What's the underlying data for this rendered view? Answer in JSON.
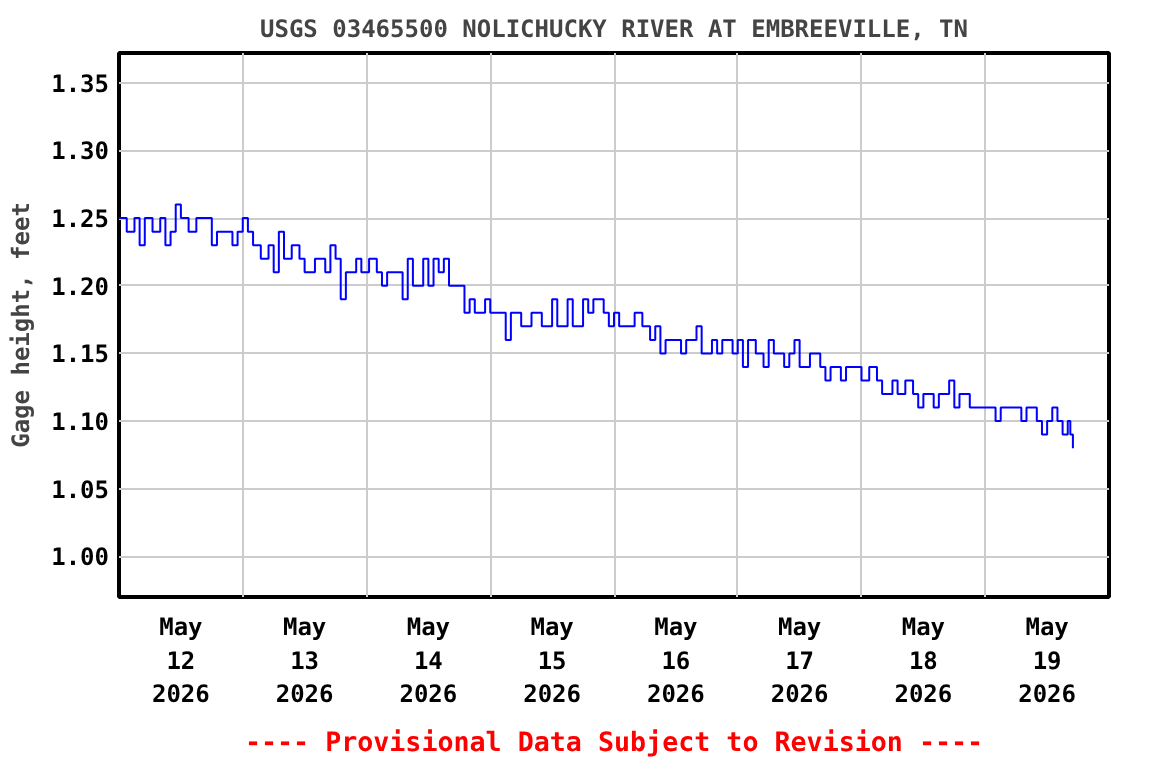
{
  "chart_data": {
    "type": "step",
    "title": "USGS 03465500 NOLICHUCKY RIVER AT EMBREEVILLE, TN",
    "ylabel": "Gage height, feet",
    "annotations": [
      "---- Provisional Data Subject to Revision ----"
    ],
    "x": [
      "2026-05-12T00:00",
      "2026-05-12T01:30",
      "2026-05-12T03:00",
      "2026-05-12T04:00",
      "2026-05-12T05:00",
      "2026-05-12T06:30",
      "2026-05-12T08:00",
      "2026-05-12T09:00",
      "2026-05-12T10:00",
      "2026-05-12T11:00",
      "2026-05-12T12:00",
      "2026-05-12T13:30",
      "2026-05-12T15:00",
      "2026-05-12T17:00",
      "2026-05-12T18:00",
      "2026-05-12T19:00",
      "2026-05-12T21:00",
      "2026-05-12T22:00",
      "2026-05-12T23:00",
      "2026-05-13T00:00",
      "2026-05-13T01:00",
      "2026-05-13T02:00",
      "2026-05-13T03:30",
      "2026-05-13T05:00",
      "2026-05-13T06:00",
      "2026-05-13T07:00",
      "2026-05-13T08:00",
      "2026-05-13T09:30",
      "2026-05-13T11:00",
      "2026-05-13T12:00",
      "2026-05-13T14:00",
      "2026-05-13T16:00",
      "2026-05-13T17:00",
      "2026-05-13T18:00",
      "2026-05-13T19:00",
      "2026-05-13T20:00",
      "2026-05-13T22:00",
      "2026-05-13T23:00",
      "2026-05-14T00:30",
      "2026-05-14T02:00",
      "2026-05-14T03:00",
      "2026-05-14T04:00",
      "2026-05-14T06:00",
      "2026-05-14T07:00",
      "2026-05-14T08:00",
      "2026-05-14T09:00",
      "2026-05-14T11:00",
      "2026-05-14T12:00",
      "2026-05-14T13:00",
      "2026-05-14T14:00",
      "2026-05-14T15:00",
      "2026-05-14T16:00",
      "2026-05-14T18:00",
      "2026-05-14T19:00",
      "2026-05-14T20:00",
      "2026-05-14T21:00",
      "2026-05-14T23:00",
      "2026-05-15T00:00",
      "2026-05-15T02:00",
      "2026-05-15T03:00",
      "2026-05-15T04:00",
      "2026-05-15T06:00",
      "2026-05-15T08:00",
      "2026-05-15T10:00",
      "2026-05-15T12:00",
      "2026-05-15T13:00",
      "2026-05-15T15:00",
      "2026-05-15T16:00",
      "2026-05-15T18:00",
      "2026-05-15T19:00",
      "2026-05-15T20:00",
      "2026-05-15T22:00",
      "2026-05-15T23:00",
      "2026-05-16T00:00",
      "2026-05-16T01:00",
      "2026-05-16T03:00",
      "2026-05-16T04:00",
      "2026-05-16T05:30",
      "2026-05-16T07:00",
      "2026-05-16T08:00",
      "2026-05-16T09:00",
      "2026-05-16T10:00",
      "2026-05-16T12:00",
      "2026-05-16T13:00",
      "2026-05-16T14:00",
      "2026-05-16T16:00",
      "2026-05-16T17:00",
      "2026-05-16T19:00",
      "2026-05-16T20:00",
      "2026-05-16T21:00",
      "2026-05-16T23:00",
      "2026-05-17T00:00",
      "2026-05-17T01:00",
      "2026-05-17T02:00",
      "2026-05-17T03:30",
      "2026-05-17T05:00",
      "2026-05-17T06:00",
      "2026-05-17T07:00",
      "2026-05-17T09:00",
      "2026-05-17T10:00",
      "2026-05-17T11:00",
      "2026-05-17T12:00",
      "2026-05-17T14:00",
      "2026-05-17T16:00",
      "2026-05-17T17:00",
      "2026-05-17T18:00",
      "2026-05-17T20:00",
      "2026-05-17T21:00",
      "2026-05-17T23:00",
      "2026-05-18T00:00",
      "2026-05-18T01:30",
      "2026-05-18T03:00",
      "2026-05-18T04:00",
      "2026-05-18T06:00",
      "2026-05-18T07:00",
      "2026-05-18T08:30",
      "2026-05-18T10:00",
      "2026-05-18T11:00",
      "2026-05-18T12:00",
      "2026-05-18T14:00",
      "2026-05-18T15:00",
      "2026-05-18T17:00",
      "2026-05-18T18:00",
      "2026-05-18T19:00",
      "2026-05-18T21:00",
      "2026-05-18T23:00",
      "2026-05-19T00:00",
      "2026-05-19T02:00",
      "2026-05-19T03:00",
      "2026-05-19T05:00",
      "2026-05-19T07:00",
      "2026-05-19T08:00",
      "2026-05-19T10:00",
      "2026-05-19T11:00",
      "2026-05-19T12:00",
      "2026-05-19T13:00",
      "2026-05-19T14:00",
      "2026-05-19T15:00",
      "2026-05-19T16:00",
      "2026-05-19T16:30",
      "2026-05-19T17:00"
    ],
    "series": [
      {
        "color": "#0000ff",
        "values": [
          1.25,
          1.24,
          1.25,
          1.23,
          1.25,
          1.24,
          1.25,
          1.23,
          1.24,
          1.26,
          1.25,
          1.24,
          1.25,
          1.25,
          1.23,
          1.24,
          1.24,
          1.23,
          1.24,
          1.25,
          1.24,
          1.23,
          1.22,
          1.23,
          1.21,
          1.24,
          1.22,
          1.23,
          1.22,
          1.21,
          1.22,
          1.21,
          1.23,
          1.22,
          1.19,
          1.21,
          1.22,
          1.21,
          1.22,
          1.21,
          1.2,
          1.21,
          1.21,
          1.19,
          1.22,
          1.2,
          1.22,
          1.2,
          1.22,
          1.21,
          1.22,
          1.2,
          1.2,
          1.18,
          1.19,
          1.18,
          1.19,
          1.18,
          1.18,
          1.16,
          1.18,
          1.17,
          1.18,
          1.17,
          1.19,
          1.17,
          1.19,
          1.17,
          1.19,
          1.18,
          1.19,
          1.18,
          1.17,
          1.18,
          1.17,
          1.17,
          1.18,
          1.17,
          1.16,
          1.17,
          1.15,
          1.16,
          1.16,
          1.15,
          1.16,
          1.17,
          1.15,
          1.16,
          1.15,
          1.16,
          1.15,
          1.16,
          1.14,
          1.16,
          1.15,
          1.14,
          1.16,
          1.15,
          1.14,
          1.15,
          1.16,
          1.14,
          1.15,
          1.14,
          1.13,
          1.14,
          1.13,
          1.14,
          1.14,
          1.13,
          1.14,
          1.13,
          1.12,
          1.13,
          1.12,
          1.13,
          1.12,
          1.11,
          1.12,
          1.11,
          1.12,
          1.13,
          1.11,
          1.12,
          1.11,
          1.11,
          1.11,
          1.1,
          1.11,
          1.11,
          1.1,
          1.11,
          1.1,
          1.09,
          1.1,
          1.11,
          1.1,
          1.09,
          1.1,
          1.09,
          1.08
        ]
      }
    ],
    "xlim": [
      "2026-05-12T00:00",
      "2026-05-20T00:00"
    ],
    "xticks": [
      {
        "value": "2026-05-12T12:00",
        "label": "May\n12\n2026"
      },
      {
        "value": "2026-05-13T00:00",
        "label": null
      },
      {
        "value": "2026-05-13T12:00",
        "label": "May\n13\n2026"
      },
      {
        "value": "2026-05-14T00:00",
        "label": null
      },
      {
        "value": "2026-05-14T12:00",
        "label": "May\n14\n2026"
      },
      {
        "value": "2026-05-15T00:00",
        "label": null
      },
      {
        "value": "2026-05-15T12:00",
        "label": "May\n15\n2026"
      },
      {
        "value": "2026-05-16T00:00",
        "label": null
      },
      {
        "value": "2026-05-16T12:00",
        "label": "May\n16\n2026"
      },
      {
        "value": "2026-05-17T00:00",
        "label": null
      },
      {
        "value": "2026-05-17T12:00",
        "label": "May\n17\n2026"
      },
      {
        "value": "2026-05-18T00:00",
        "label": null
      },
      {
        "value": "2026-05-18T12:00",
        "label": "May\n18\n2026"
      },
      {
        "value": "2026-05-19T00:00",
        "label": null
      },
      {
        "value": "2026-05-19T12:00",
        "label": "May\n19\n2026"
      }
    ],
    "ylim": [
      0.97,
      1.372
    ],
    "yticks": [
      {
        "value": 1.0,
        "label": "1.00"
      },
      {
        "value": 1.05,
        "label": "1.05"
      },
      {
        "value": 1.1,
        "label": "1.10"
      },
      {
        "value": 1.15,
        "label": "1.15"
      },
      {
        "value": 1.2,
        "label": "1.20"
      },
      {
        "value": 1.25,
        "label": "1.25"
      },
      {
        "value": 1.3,
        "label": "1.30"
      },
      {
        "value": 1.35,
        "label": "1.35"
      }
    ],
    "grid": true,
    "line_style": "solid"
  }
}
